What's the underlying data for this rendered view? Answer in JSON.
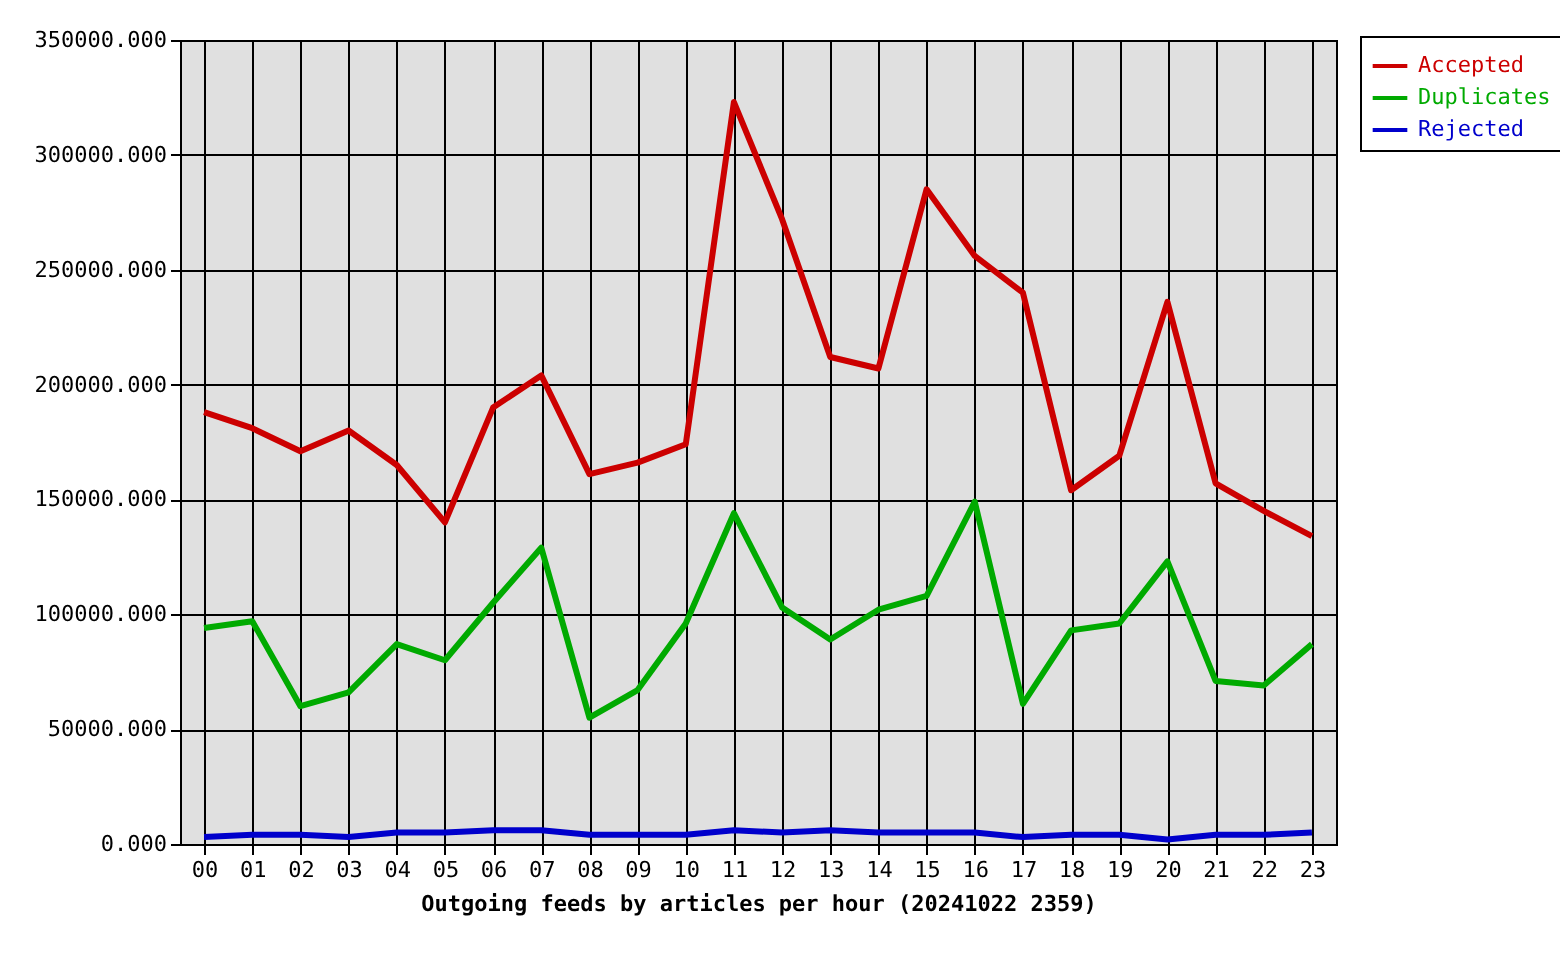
{
  "chart_data": {
    "type": "line",
    "xlabel": "Outgoing feeds by articles per hour (20241022 2359)",
    "categories": [
      "00",
      "01",
      "02",
      "03",
      "04",
      "05",
      "06",
      "07",
      "08",
      "09",
      "10",
      "11",
      "12",
      "13",
      "14",
      "15",
      "16",
      "17",
      "18",
      "19",
      "20",
      "21",
      "22",
      "23"
    ],
    "series": [
      {
        "name": "Accepted",
        "color": "#cc0000",
        "values": [
          188000,
          181000,
          171000,
          180000,
          165000,
          140000,
          190000,
          204000,
          161000,
          166000,
          174000,
          323000,
          272000,
          212000,
          207000,
          285000,
          256000,
          240000,
          154000,
          169000,
          236000,
          157000,
          145000,
          134000
        ]
      },
      {
        "name": "Duplicates",
        "color": "#00aa00",
        "values": [
          94000,
          97000,
          60000,
          66000,
          87000,
          80000,
          105000,
          129000,
          55000,
          67000,
          96000,
          144000,
          103000,
          89000,
          102000,
          108000,
          149000,
          61000,
          93000,
          96000,
          123000,
          71000,
          69000,
          87000
        ]
      },
      {
        "name": "Rejected",
        "color": "#0000cc",
        "values": [
          3000,
          4000,
          4000,
          3000,
          5000,
          5000,
          6000,
          6000,
          4000,
          4000,
          4000,
          6000,
          5000,
          6000,
          5000,
          5000,
          5000,
          3000,
          4000,
          4000,
          2000,
          4000,
          4000,
          5000
        ]
      }
    ],
    "ylim": [
      0,
      350000
    ],
    "yticks": [
      {
        "value": 0,
        "label": "0.000"
      },
      {
        "value": 50000,
        "label": "50000.000"
      },
      {
        "value": 100000,
        "label": "100000.000"
      },
      {
        "value": 150000,
        "label": "150000.000"
      },
      {
        "value": 200000,
        "label": "200000.000"
      },
      {
        "value": 250000,
        "label": "250000.000"
      },
      {
        "value": 300000,
        "label": "300000.000"
      },
      {
        "value": 350000,
        "label": "350000.000"
      }
    ],
    "grid": true,
    "legend": "top right",
    "line_style": "solid"
  }
}
